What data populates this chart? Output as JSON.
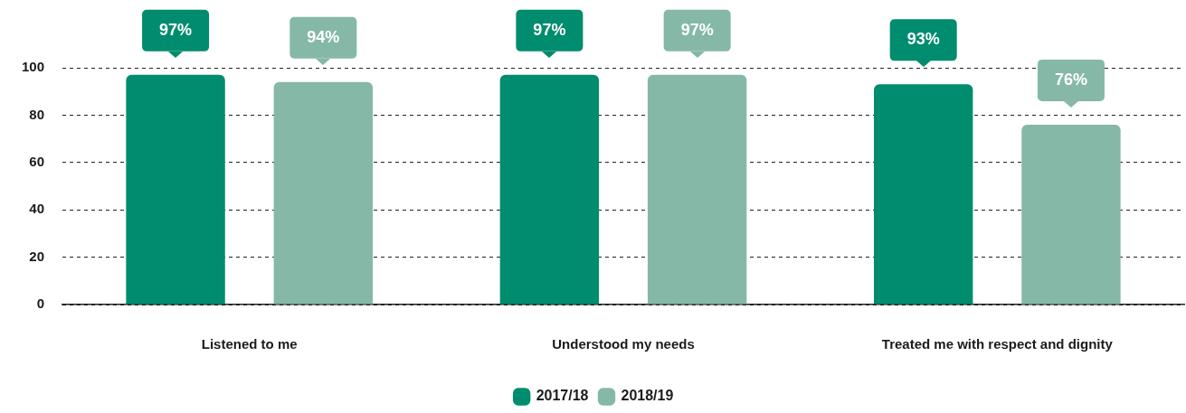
{
  "chart_data": {
    "type": "bar",
    "categories": [
      "Listened to me",
      "Understood my needs",
      "Treated me with respect and dignity"
    ],
    "series": [
      {
        "name": "2017/18",
        "color": "#008c6e",
        "values": [
          97,
          97,
          93
        ],
        "value_labels": [
          "97%",
          "97%",
          "93%"
        ]
      },
      {
        "name": "2018/19",
        "color": "#85b8a7",
        "values": [
          94,
          97,
          76
        ],
        "value_labels": [
          "94%",
          "97%",
          "76%"
        ]
      }
    ],
    "ylim": [
      0,
      100
    ],
    "yticks": [
      0,
      20,
      40,
      60,
      80,
      100
    ],
    "grid": "y",
    "legend": "bottom"
  }
}
